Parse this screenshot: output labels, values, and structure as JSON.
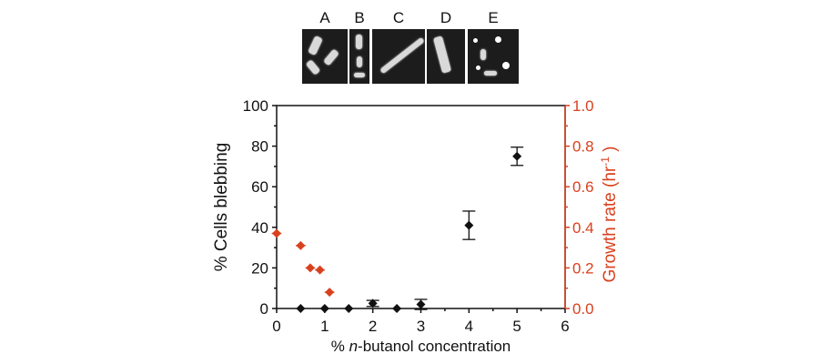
{
  "panels": [
    "A",
    "B",
    "C",
    "D",
    "E"
  ],
  "chart_data": {
    "type": "scatter",
    "title": "",
    "xlabel_prefix": "% ",
    "xlabel_italic": "n",
    "xlabel_suffix": "-butanol concentration",
    "ylabel_left": "% Cells blebbing",
    "ylabel_right": "Growth rate (hr",
    "ylabel_right_sup": "-1",
    "ylabel_right_close": " )",
    "xlim": [
      0,
      6
    ],
    "ylim_left": [
      0,
      100
    ],
    "ylim_right": [
      0,
      1.0
    ],
    "x_ticks": [
      "0",
      "1",
      "2",
      "3",
      "4",
      "5",
      "6"
    ],
    "y_left_ticks": [
      "0",
      "20",
      "40",
      "60",
      "80",
      "100"
    ],
    "y_right_ticks": [
      "0.0",
      "0.2",
      "0.4",
      "0.6",
      "0.8",
      "1.0"
    ],
    "colors": {
      "blebbing": "#111111",
      "growth": "#d9411e"
    },
    "series": [
      {
        "axis": "left",
        "points": [
          {
            "x": 0.5,
            "y": 0
          },
          {
            "x": 1.0,
            "y": 0
          },
          {
            "x": 1.5,
            "y": 0
          },
          {
            "x": 2.0,
            "y": 2.5,
            "err": 1.5
          },
          {
            "x": 2.5,
            "y": 0
          },
          {
            "x": 3.0,
            "y": 2,
            "err": 2.5
          },
          {
            "x": 4.0,
            "y": 41,
            "err": 7
          },
          {
            "x": 5.0,
            "y": 75,
            "err": 4.5
          }
        ]
      },
      {
        "axis": "right",
        "points": [
          {
            "x": 0.0,
            "y": 0.37,
            "xerr": 0.1
          },
          {
            "x": 0.5,
            "y": 0.31,
            "xerr": 0.1
          },
          {
            "x": 0.7,
            "y": 0.2,
            "xerr": 0.1
          },
          {
            "x": 0.9,
            "y": 0.19,
            "xerr": 0.1
          },
          {
            "x": 1.1,
            "y": 0.08,
            "xerr": 0.1
          }
        ]
      }
    ]
  }
}
